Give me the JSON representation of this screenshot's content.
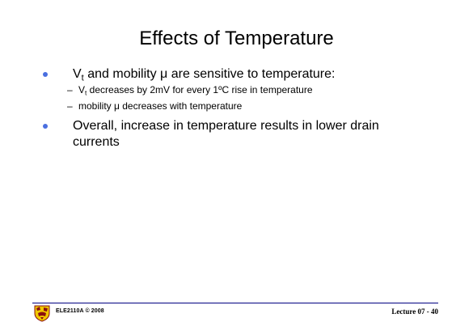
{
  "slide": {
    "title": "Effects of Temperature"
  },
  "bullets": [
    {
      "symbol": "V",
      "subscript": "t",
      "text": " and mobility μ are sensitive to temperature:",
      "sub_items": [
        {
          "symbol": "V",
          "subscript": "t",
          "text": " decreases by 2mV for every 1ºC rise in temperature"
        },
        {
          "text": "mobility μ decreases with temperature"
        }
      ]
    },
    {
      "text": "Overall, increase in temperature results in lower drain currents"
    }
  ],
  "sub_dash": "–",
  "footer": {
    "course": "ELE2110A © 2008",
    "page": "Lecture 07 - 40",
    "logo_icon": "university-crest",
    "rule_color": "#000080"
  },
  "colors": {
    "bullet": "#4a6fe0"
  }
}
